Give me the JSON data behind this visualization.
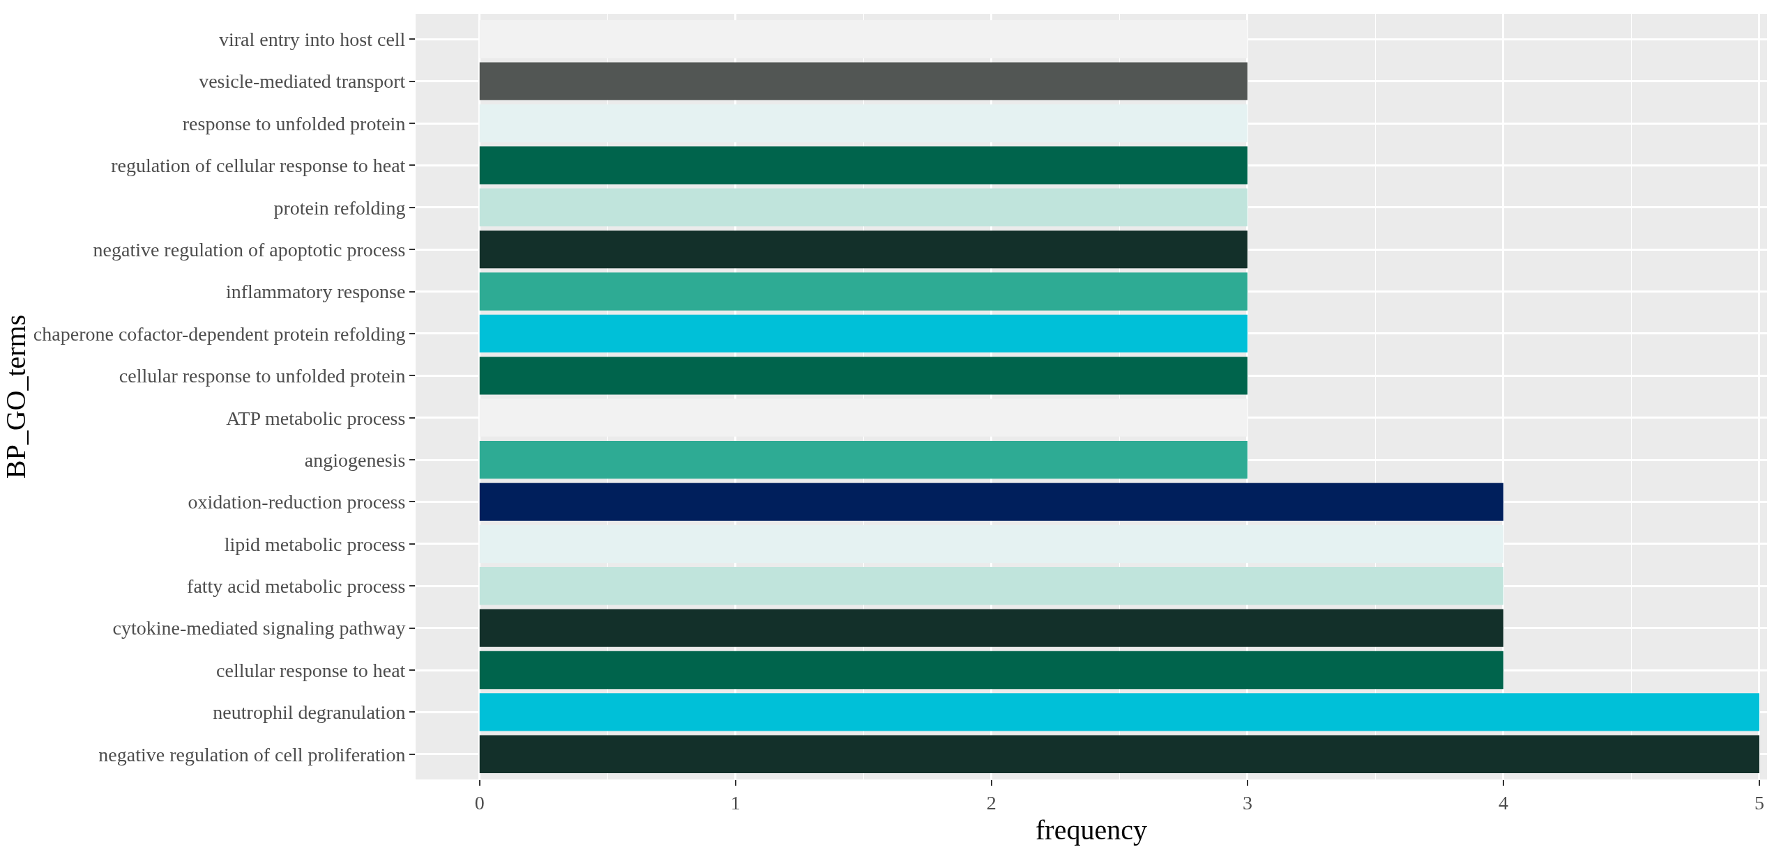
{
  "chart_data": {
    "type": "bar",
    "orientation": "horizontal",
    "xlabel": "frequency",
    "ylabel": "BP_GO_terms",
    "categories": [
      "viral entry into host cell",
      "vesicle-mediated transport",
      "response to unfolded protein",
      "regulation of cellular response to heat",
      "protein refolding",
      "negative regulation of apoptotic process",
      "inflammatory response",
      "chaperone cofactor-dependent protein refolding",
      "cellular response to unfolded protein",
      "ATP metabolic process",
      "angiogenesis",
      "oxidation-reduction process",
      "lipid metabolic process",
      "fatty acid metabolic process",
      "cytokine-mediated signaling pathway",
      "cellular response to heat",
      "neutrophil degranulation",
      "negative regulation of cell proliferation"
    ],
    "values": [
      3,
      3,
      3,
      3,
      3,
      3,
      3,
      3,
      3,
      3,
      3,
      4,
      4,
      4,
      4,
      4,
      5,
      5
    ],
    "colors": [
      "#f2f2f2",
      "#525654",
      "#e5f2f2",
      "#00644c",
      "#c0e4dc",
      "#13302a",
      "#2eab94",
      "#00c0d8",
      "#00644c",
      "#f2f2f2",
      "#2eab94",
      "#001f5c",
      "#e5f2f2",
      "#c0e4dc",
      "#13302a",
      "#00644c",
      "#00c0d8",
      "#13302a"
    ],
    "xlim": [
      -0.25,
      5.03
    ],
    "xticks": [
      0,
      1,
      2,
      3,
      4,
      5
    ],
    "grid": true
  }
}
